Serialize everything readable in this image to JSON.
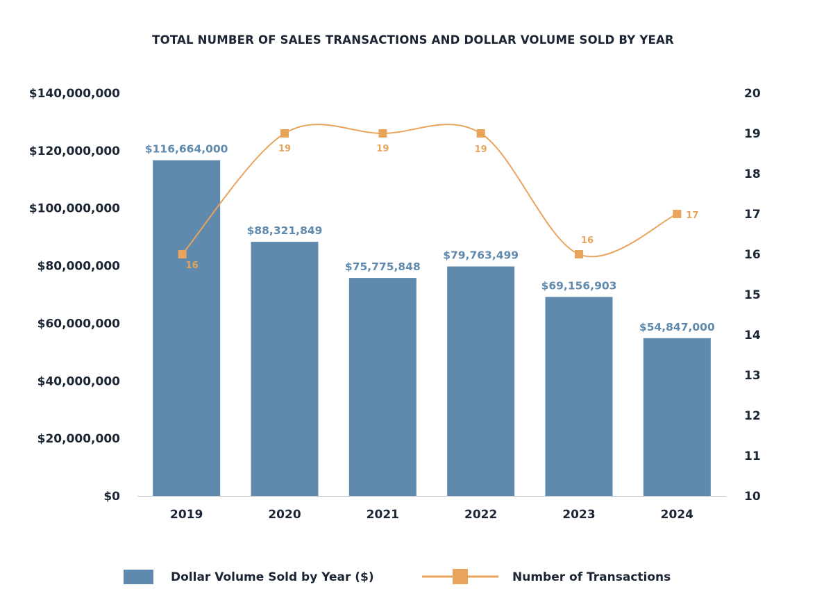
{
  "chart_data": {
    "type": "bar",
    "title": "TOTAL NUMBER OF SALES TRANSACTIONS AND DOLLAR VOLUME SOLD BY YEAR",
    "categories": [
      "2019",
      "2020",
      "2021",
      "2022",
      "2023",
      "2024"
    ],
    "series": [
      {
        "name": "Dollar Volume Sold by Year ($)",
        "type": "bar",
        "axis": "left",
        "color": "#5f8aad",
        "label_color": "#5f8aad",
        "values": [
          116664000,
          88321849,
          75775848,
          79763499,
          69156903,
          54847000
        ],
        "data_labels": [
          "$116,664,000",
          "$88,321,849",
          "$75,775,848",
          "$79,763,499",
          "$69,156,903",
          "$54,847,000"
        ]
      },
      {
        "name": "Number of Transactions",
        "type": "line",
        "smooth": true,
        "marker": "square",
        "axis": "right",
        "color": "#e9a45b",
        "values": [
          16,
          19,
          19,
          19,
          16,
          17
        ],
        "data_labels": [
          "16",
          "19",
          "19",
          "19",
          "16",
          "17"
        ]
      }
    ],
    "y_left": {
      "ylim": [
        0,
        140000000
      ],
      "ticks": [
        0,
        20000000,
        40000000,
        60000000,
        80000000,
        100000000,
        120000000,
        140000000
      ],
      "tick_labels": [
        "$0",
        "$20,000,000",
        "$40,000,000",
        "$60,000,000",
        "$80,000,000",
        "$100,000,000",
        "$120,000,000",
        "$140,000,000"
      ]
    },
    "y_right": {
      "ylim": [
        10,
        20
      ],
      "ticks": [
        10,
        11,
        12,
        13,
        14,
        15,
        16,
        17,
        18,
        19,
        20
      ],
      "tick_labels": [
        "10",
        "11",
        "12",
        "13",
        "14",
        "15",
        "16",
        "17",
        "18",
        "19",
        "20"
      ]
    },
    "grid": false,
    "legend": "bottom"
  }
}
